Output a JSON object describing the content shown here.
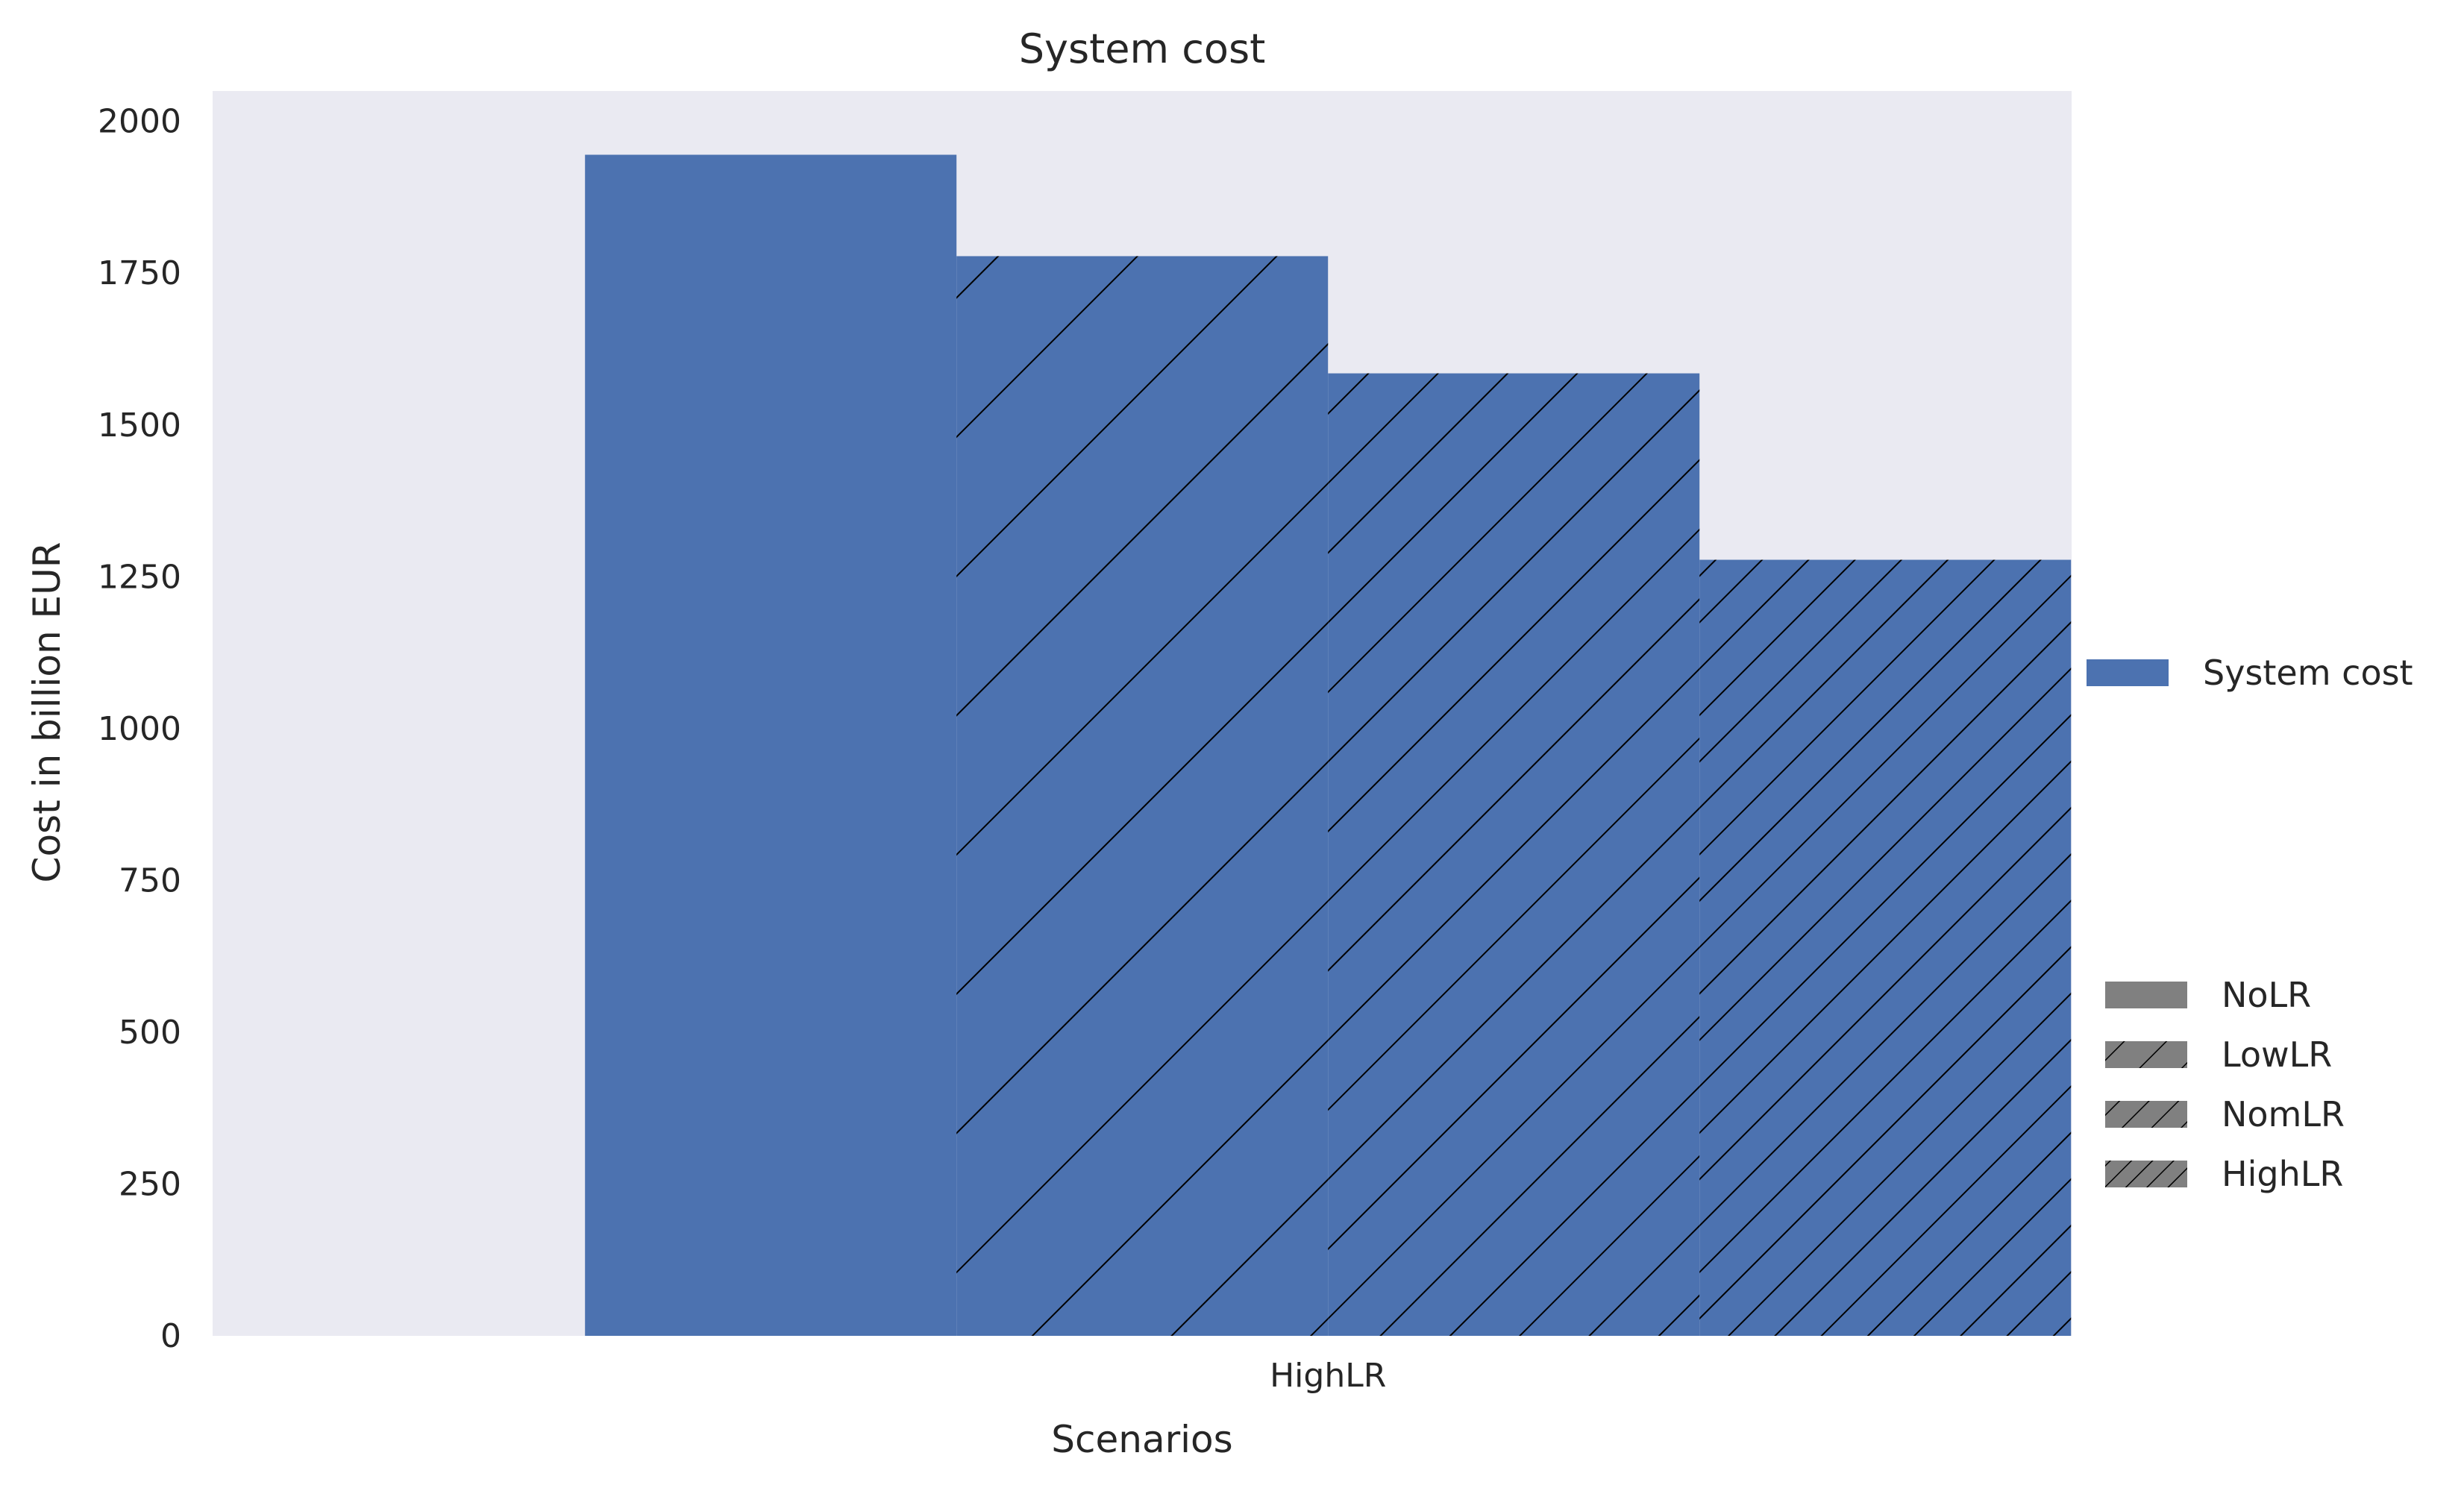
{
  "chart_data": {
    "type": "bar",
    "title": "System cost",
    "xlabel": "Scenarios",
    "ylabel": "Cost in billion EUR",
    "categories": [
      "HighLR"
    ],
    "ylim": [
      0,
      2050
    ],
    "yticks": [
      0,
      250,
      500,
      750,
      1000,
      1250,
      1500,
      1750,
      2000
    ],
    "grid": false,
    "series": [
      {
        "name": "NoLR",
        "values": [
          1945
        ],
        "hatch": "none"
      },
      {
        "name": "LowLR",
        "values": [
          1778
        ],
        "hatch": "sparse"
      },
      {
        "name": "NomLR",
        "values": [
          1585
        ],
        "hatch": "medium"
      },
      {
        "name": "HighLR",
        "values": [
          1278
        ],
        "hatch": "dense"
      }
    ],
    "legend_color": {
      "label": "System cost",
      "color": "#4c72b0",
      "placement": "right"
    },
    "legend_hatch": {
      "placement": "lower-right"
    },
    "colors": {
      "bar": "#4c72b0",
      "plot_bg": "#eaeaf2",
      "hatch_legend": "#808080"
    }
  }
}
